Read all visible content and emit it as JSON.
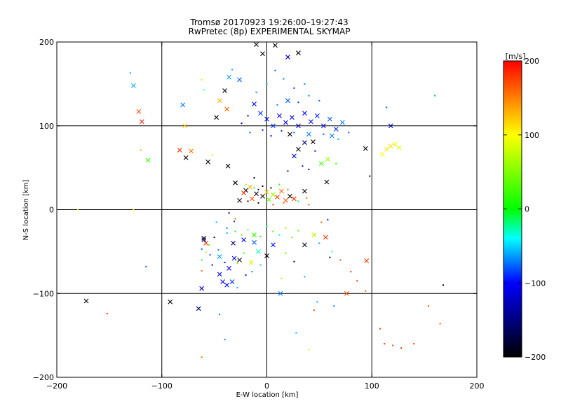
{
  "chart_data": {
    "type": "scatter",
    "title": "Tromsø 20170923 19:26:00–19:27:43",
    "subtitle": "RwPretec (8p) EXPERIMENTAL SKYMAP",
    "xlabel": "E-W location [km]",
    "ylabel": "N-S location [km]",
    "xlim": [
      -200,
      200
    ],
    "ylim": [
      -200,
      200
    ],
    "xticks": [
      "−200",
      "−100",
      "0",
      "100",
      "200"
    ],
    "yticks": [
      "−200",
      "−100",
      "0",
      "100",
      "200"
    ],
    "grid": true,
    "colorbar": {
      "label": "[m/s]",
      "range": [
        -200,
        200
      ],
      "ticks": [
        "200",
        "100",
        "0",
        "−100",
        "−200"
      ],
      "colors": [
        "#ff0000",
        "#ffff00",
        "#00ff00",
        "#00ffff",
        "#0000ff",
        "#000000"
      ]
    },
    "markers": [
      "x",
      "dot"
    ],
    "points": [
      [
        -130,
        163,
        -60,
        1
      ],
      [
        -127,
        148,
        -60,
        0
      ],
      [
        -122,
        117,
        170,
        0
      ],
      [
        -119,
        105,
        190,
        0
      ],
      [
        -113,
        59,
        20,
        0
      ],
      [
        -80,
        125,
        -70,
        0
      ],
      [
        -78,
        100,
        120,
        0
      ],
      [
        -62,
        155,
        110,
        1
      ],
      [
        -60,
        143,
        -40,
        1
      ],
      [
        -83,
        71,
        180,
        0
      ],
      [
        -72,
        70,
        150,
        0
      ],
      [
        -77,
        62,
        -200,
        0
      ],
      [
        -56,
        57,
        -200,
        0
      ],
      [
        -52,
        65,
        70,
        1
      ],
      [
        -180,
        0,
        100,
        1
      ],
      [
        -127,
        0,
        110,
        1
      ],
      [
        -120,
        71,
        130,
        1
      ],
      [
        -115,
        -68,
        -80,
        1
      ],
      [
        -172,
        -109,
        -200,
        0
      ],
      [
        -152,
        -124,
        180,
        1
      ],
      [
        -92,
        -110,
        -200,
        0
      ],
      [
        -62,
        -94,
        -130,
        0
      ],
      [
        -65,
        -118,
        -150,
        0
      ],
      [
        -62,
        -176,
        160,
        1
      ],
      [
        -45,
        -125,
        -70,
        1
      ],
      [
        -40,
        -155,
        -70,
        1
      ],
      [
        -60,
        -34,
        -200,
        0
      ],
      [
        -58,
        -40,
        180,
        0
      ],
      [
        -62,
        -73,
        160,
        1
      ],
      [
        -62,
        -60,
        -10,
        1
      ],
      [
        -58,
        -51,
        70,
        1
      ],
      [
        -55,
        -42,
        30,
        1
      ],
      [
        -45,
        -77,
        -110,
        0
      ],
      [
        -42,
        -86,
        -100,
        0
      ],
      [
        -38,
        -90,
        -110,
        0
      ],
      [
        -33,
        -86,
        -90,
        0
      ],
      [
        -36,
        -70,
        -100,
        0
      ],
      [
        -31,
        -58,
        -120,
        0
      ],
      [
        -28,
        -93,
        -60,
        1
      ],
      [
        -26,
        -60,
        -200,
        0
      ],
      [
        -22,
        -52,
        20,
        1
      ],
      [
        -15,
        -63,
        80,
        0
      ],
      [
        -20,
        -78,
        -120,
        1
      ],
      [
        -12,
        -39,
        -80,
        0
      ],
      [
        -8,
        -50,
        -30,
        0
      ],
      [
        0,
        -55,
        -200,
        0
      ],
      [
        6,
        -42,
        -100,
        0
      ],
      [
        -48,
        -15,
        -60,
        1
      ],
      [
        -38,
        -22,
        -70,
        1
      ],
      [
        -30,
        -26,
        10,
        1
      ],
      [
        -24,
        -30,
        40,
        1
      ],
      [
        -18,
        -24,
        40,
        1
      ],
      [
        -12,
        -30,
        20,
        0
      ],
      [
        -6,
        -32,
        20,
        1
      ],
      [
        0,
        -20,
        -10,
        1
      ],
      [
        6,
        -26,
        20,
        1
      ],
      [
        12,
        -30,
        -20,
        1
      ],
      [
        18,
        -22,
        60,
        1
      ],
      [
        24,
        -33,
        40,
        1
      ],
      [
        30,
        -25,
        30,
        1
      ],
      [
        36,
        -42,
        -200,
        0
      ],
      [
        45,
        -30,
        70,
        0
      ],
      [
        50,
        -40,
        -60,
        1
      ],
      [
        52,
        -15,
        160,
        1
      ],
      [
        56,
        -33,
        180,
        0
      ],
      [
        62,
        -50,
        -40,
        1
      ],
      [
        70,
        -60,
        170,
        1
      ],
      [
        80,
        -74,
        180,
        1
      ],
      [
        86,
        -85,
        180,
        1
      ],
      [
        94,
        -97,
        170,
        1
      ],
      [
        95,
        -61,
        180,
        0
      ],
      [
        108,
        -142,
        180,
        1
      ],
      [
        112,
        -160,
        180,
        1
      ],
      [
        120,
        -162,
        180,
        1
      ],
      [
        128,
        -165,
        180,
        1
      ],
      [
        140,
        -160,
        180,
        1
      ],
      [
        154,
        -115,
        170,
        1
      ],
      [
        165,
        -136,
        170,
        1
      ],
      [
        168,
        -90,
        -200,
        1
      ],
      [
        45,
        -120,
        170,
        1
      ],
      [
        48,
        -110,
        -60,
        1
      ],
      [
        28,
        -147,
        -60,
        1
      ],
      [
        40,
        -167,
        80,
        1
      ],
      [
        13,
        -100,
        -70,
        0
      ],
      [
        -37,
        52,
        -200,
        0
      ],
      [
        -30,
        32,
        -200,
        0
      ],
      [
        -20,
        23,
        -200,
        0
      ],
      [
        -30,
        -11,
        160,
        1
      ],
      [
        -36,
        -4,
        -200,
        1
      ],
      [
        -31,
        -14,
        -90,
        1
      ],
      [
        -12,
        38,
        -200,
        1
      ],
      [
        -8,
        24,
        -150,
        1
      ],
      [
        -14,
        13,
        160,
        0
      ],
      [
        -22,
        20,
        180,
        0
      ],
      [
        -16,
        27,
        130,
        0
      ],
      [
        -10,
        19,
        -200,
        0
      ],
      [
        -4,
        16,
        -200,
        0
      ],
      [
        0,
        21,
        120,
        0
      ],
      [
        2,
        12,
        40,
        0
      ],
      [
        6,
        18,
        60,
        0
      ],
      [
        10,
        15,
        180,
        0
      ],
      [
        14,
        22,
        160,
        0
      ],
      [
        18,
        11,
        170,
        0
      ],
      [
        22,
        16,
        -200,
        0
      ],
      [
        26,
        13,
        180,
        0
      ],
      [
        -20,
        30,
        40,
        1
      ],
      [
        -12,
        26,
        20,
        1
      ],
      [
        -4,
        28,
        -200,
        1
      ],
      [
        4,
        26,
        -200,
        1
      ],
      [
        12,
        30,
        10,
        1
      ],
      [
        20,
        24,
        160,
        1
      ],
      [
        -18,
        10,
        -200,
        1
      ],
      [
        -8,
        8,
        -200,
        1
      ],
      [
        6,
        6,
        180,
        1
      ],
      [
        16,
        8,
        150,
        1
      ],
      [
        30,
        10,
        -10,
        1
      ],
      [
        38,
        14,
        160,
        1
      ],
      [
        40,
        6,
        170,
        1
      ],
      [
        -26,
        11,
        -200,
        0
      ],
      [
        36,
        22,
        -200,
        0
      ],
      [
        58,
        -12,
        -90,
        1
      ],
      [
        52,
        55,
        20,
        0
      ],
      [
        58,
        60,
        60,
        0
      ],
      [
        57,
        33,
        -200,
        0
      ],
      [
        66,
        55,
        20,
        1
      ],
      [
        44,
        81,
        -200,
        0
      ],
      [
        30,
        72,
        -200,
        0
      ],
      [
        26,
        64,
        -120,
        0
      ],
      [
        40,
        48,
        -130,
        1
      ],
      [
        34,
        52,
        -120,
        1
      ],
      [
        94,
        73,
        -200,
        0
      ],
      [
        98,
        40,
        -200,
        1
      ],
      [
        110,
        66,
        100,
        0
      ],
      [
        114,
        72,
        110,
        0
      ],
      [
        118,
        76,
        110,
        0
      ],
      [
        122,
        78,
        90,
        0
      ],
      [
        126,
        74,
        90,
        0
      ],
      [
        114,
        122,
        -80,
        1
      ],
      [
        118,
        100,
        -130,
        0
      ],
      [
        160,
        136,
        -60,
        1
      ],
      [
        -10,
        197,
        -200,
        0
      ],
      [
        -4,
        186,
        -200,
        0
      ],
      [
        8,
        196,
        -200,
        0
      ],
      [
        30,
        187,
        -200,
        0
      ],
      [
        20,
        182,
        -120,
        0
      ],
      [
        -40,
        142,
        -200,
        0
      ],
      [
        -36,
        158,
        -60,
        0
      ],
      [
        -26,
        155,
        -80,
        0
      ],
      [
        -33,
        167,
        -60,
        1
      ],
      [
        -45,
        130,
        130,
        0
      ],
      [
        -48,
        110,
        -200,
        0
      ],
      [
        -38,
        120,
        160,
        0
      ],
      [
        -18,
        112,
        -200,
        1
      ],
      [
        -12,
        126,
        -100,
        0
      ],
      [
        -6,
        115,
        -90,
        0
      ],
      [
        0,
        108,
        -110,
        0
      ],
      [
        6,
        100,
        -90,
        0
      ],
      [
        12,
        112,
        -110,
        0
      ],
      [
        18,
        104,
        -100,
        0
      ],
      [
        24,
        110,
        -110,
        0
      ],
      [
        30,
        100,
        -120,
        0
      ],
      [
        36,
        115,
        -100,
        0
      ],
      [
        42,
        105,
        -110,
        0
      ],
      [
        48,
        112,
        -90,
        0
      ],
      [
        54,
        100,
        -100,
        0
      ],
      [
        60,
        108,
        -80,
        0
      ],
      [
        66,
        96,
        -90,
        0
      ],
      [
        72,
        104,
        -70,
        0
      ],
      [
        78,
        92,
        -80,
        1
      ],
      [
        10,
        125,
        -70,
        1
      ],
      [
        20,
        130,
        -80,
        0
      ],
      [
        30,
        128,
        -90,
        1
      ],
      [
        40,
        136,
        -70,
        1
      ],
      [
        50,
        130,
        -80,
        1
      ],
      [
        -10,
        140,
        -70,
        1
      ],
      [
        0,
        150,
        -60,
        1
      ],
      [
        8,
        166,
        -80,
        1
      ],
      [
        16,
        156,
        -70,
        1
      ],
      [
        26,
        145,
        -90,
        1
      ],
      [
        36,
        150,
        -70,
        1
      ],
      [
        -24,
        103,
        -120,
        1
      ],
      [
        -16,
        92,
        -80,
        1
      ],
      [
        -4,
        95,
        -100,
        1
      ],
      [
        4,
        88,
        -110,
        1
      ],
      [
        14,
        94,
        -90,
        1
      ],
      [
        26,
        92,
        -80,
        1
      ],
      [
        40,
        90,
        -70,
        0
      ],
      [
        54,
        90,
        -80,
        1
      ],
      [
        62,
        88,
        -70,
        0
      ],
      [
        68,
        84,
        -60,
        1
      ],
      [
        22,
        90,
        -200,
        0
      ],
      [
        36,
        80,
        -150,
        0
      ],
      [
        46,
        70,
        -120,
        1
      ],
      [
        20,
        46,
        -130,
        1
      ],
      [
        -52,
        -66,
        -130,
        1
      ],
      [
        -32,
        -40,
        -150,
        0
      ],
      [
        -22,
        -36,
        -100,
        0
      ],
      [
        -54,
        -54,
        -80,
        1
      ],
      [
        -46,
        -48,
        -70,
        1
      ],
      [
        -38,
        -28,
        -60,
        1
      ],
      [
        -28,
        -64,
        40,
        1
      ],
      [
        -14,
        -74,
        -70,
        1
      ],
      [
        -6,
        -66,
        -50,
        1
      ],
      [
        26,
        -62,
        -200,
        1
      ],
      [
        36,
        -80,
        -60,
        1
      ],
      [
        14,
        -82,
        60,
        1
      ],
      [
        18,
        -52,
        30,
        1
      ],
      [
        60,
        -57,
        -200,
        1
      ],
      [
        76,
        -100,
        170,
        0
      ],
      [
        64,
        -115,
        -70,
        1
      ],
      [
        -60,
        -36,
        -150,
        0
      ],
      [
        -62,
        -47,
        -80,
        1
      ],
      [
        -50,
        -33,
        -200,
        1
      ],
      [
        -45,
        -56,
        -60,
        0
      ],
      [
        -40,
        -63,
        -110,
        1
      ]
    ]
  }
}
